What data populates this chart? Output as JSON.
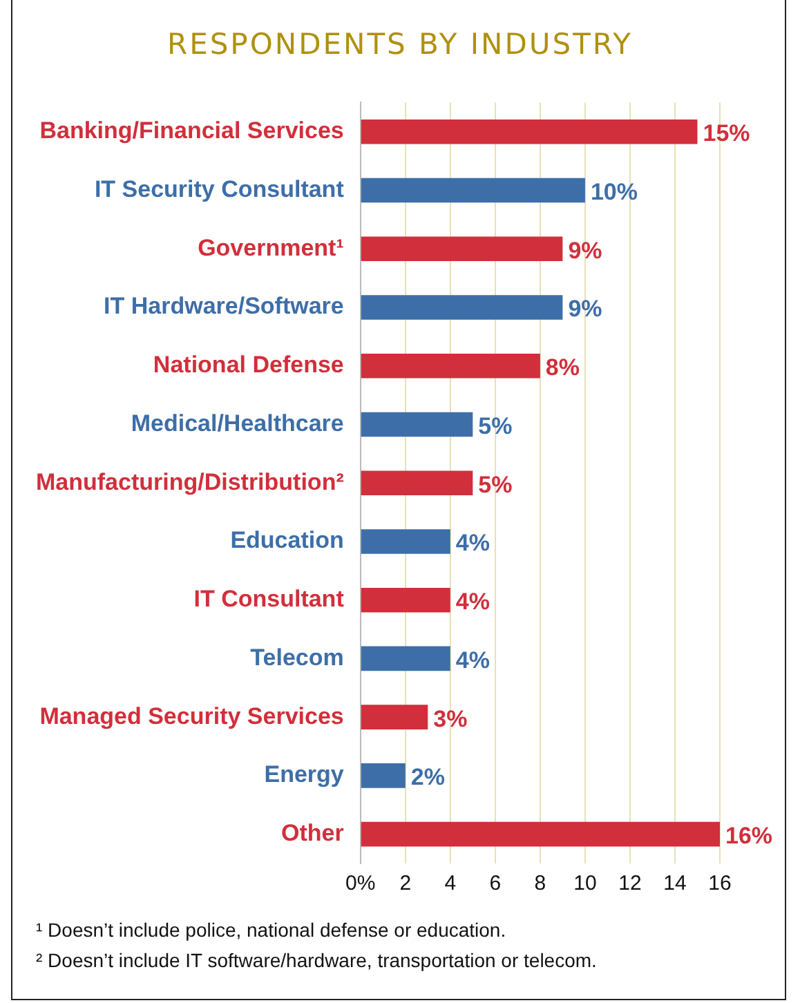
{
  "chart_data": {
    "type": "bar",
    "orientation": "horizontal",
    "title": "RESPONDENTS BY INDUSTRY",
    "categories": [
      "Banking/Financial Services",
      "IT Security Consultant",
      "Government¹",
      "IT Hardware/Software",
      "National Defense",
      "Medical/Healthcare",
      "Manufacturing/Distribution²",
      "Education",
      "IT Consultant",
      "Telecom",
      "Managed Security Services",
      "Energy",
      "Other"
    ],
    "values": [
      15,
      10,
      9,
      9,
      8,
      5,
      5,
      4,
      4,
      4,
      3,
      2,
      16
    ],
    "colors": [
      "#d12f3b",
      "#3d6ea8",
      "#d12f3b",
      "#3d6ea8",
      "#d12f3b",
      "#3d6ea8",
      "#d12f3b",
      "#3d6ea8",
      "#d12f3b",
      "#3d6ea8",
      "#d12f3b",
      "#3d6ea8",
      "#d12f3b"
    ],
    "value_labels": [
      "15%",
      "10%",
      "9%",
      "9%",
      "8%",
      "5%",
      "5%",
      "4%",
      "4%",
      "4%",
      "3%",
      "2%",
      "16%"
    ],
    "xlim": [
      0,
      16
    ],
    "xticks": [
      {
        "value": 0,
        "label": "0%"
      },
      2,
      4,
      6,
      8,
      10,
      12,
      14,
      16
    ],
    "grid": "x",
    "legend": false,
    "annotations": [
      "¹ Doesn’t include police, national defense or education.",
      "² Doesn’t include IT software/hardware, transportation or telecom."
    ]
  }
}
